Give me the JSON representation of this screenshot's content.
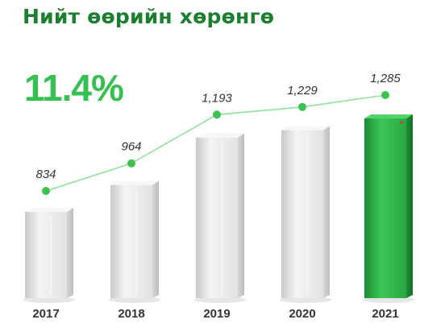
{
  "title": "Нийт өөрийн хөрөнгө",
  "growth": "11.4%",
  "colors": {
    "title": "#1a7f2e",
    "growth": "#35c14f",
    "line": "#8ee39a",
    "point": "#3cc24f",
    "highlight_bar": "#2ea845"
  },
  "chart_data": {
    "type": "bar",
    "categories": [
      "2017",
      "2018",
      "2019",
      "2020",
      "2021"
    ],
    "values": [
      834,
      964,
      1193,
      1229,
      1285
    ],
    "value_labels": [
      "834",
      "964",
      "1,193",
      "1,229",
      "1,285"
    ],
    "highlight_category": "2021",
    "overlay": "line-with-markers",
    "title": "Нийт өөрийн хөрөнгө",
    "xlabel": "",
    "ylabel": "",
    "grid": false
  }
}
